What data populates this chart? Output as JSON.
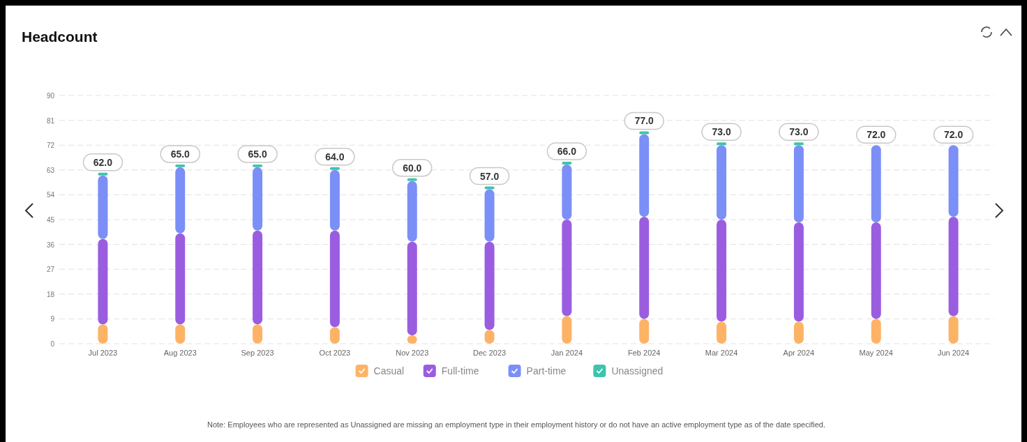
{
  "chart_data": {
    "type": "bar",
    "title": "Headcount",
    "categories": [
      "Jul 2023",
      "Aug 2023",
      "Sep 2023",
      "Oct 2023",
      "Nov 2023",
      "Dec 2023",
      "Jan 2024",
      "Feb 2024",
      "Mar 2024",
      "Apr 2024",
      "May 2024",
      "Jun 2024"
    ],
    "series": [
      {
        "name": "Casual",
        "color": "#fdb366",
        "values": [
          7,
          7,
          7,
          6,
          3,
          5,
          10,
          9,
          8,
          8,
          9,
          10
        ]
      },
      {
        "name": "Full-time",
        "color": "#9b5de0",
        "values": [
          31,
          33,
          34,
          35,
          34,
          32,
          35,
          37,
          37,
          36,
          35,
          36
        ]
      },
      {
        "name": "Part-time",
        "color": "#7b8ff7",
        "values": [
          23,
          24,
          23,
          22,
          22,
          19,
          20,
          30,
          27,
          28,
          28,
          26
        ]
      },
      {
        "name": "Unassigned",
        "color": "#3cc4ad",
        "values": [
          1,
          1,
          1,
          1,
          1,
          1,
          1,
          1,
          1,
          1,
          0,
          0
        ]
      }
    ],
    "stacked": true,
    "totals": [
      "62.0",
      "65.0",
      "65.0",
      "64.0",
      "60.0",
      "57.0",
      "66.0",
      "77.0",
      "73.0",
      "73.0",
      "72.0",
      "72.0"
    ],
    "ylim": [
      0,
      90
    ],
    "yticks": [
      0,
      9,
      18,
      27,
      36,
      45,
      54,
      63,
      72,
      81,
      90
    ],
    "grid": "y",
    "legend": "bottom",
    "annotations": [
      "Note: Employees who are represented as Unassigned are missing an employment type in their employment history or do not have an active employment type as of the date specified."
    ]
  }
}
